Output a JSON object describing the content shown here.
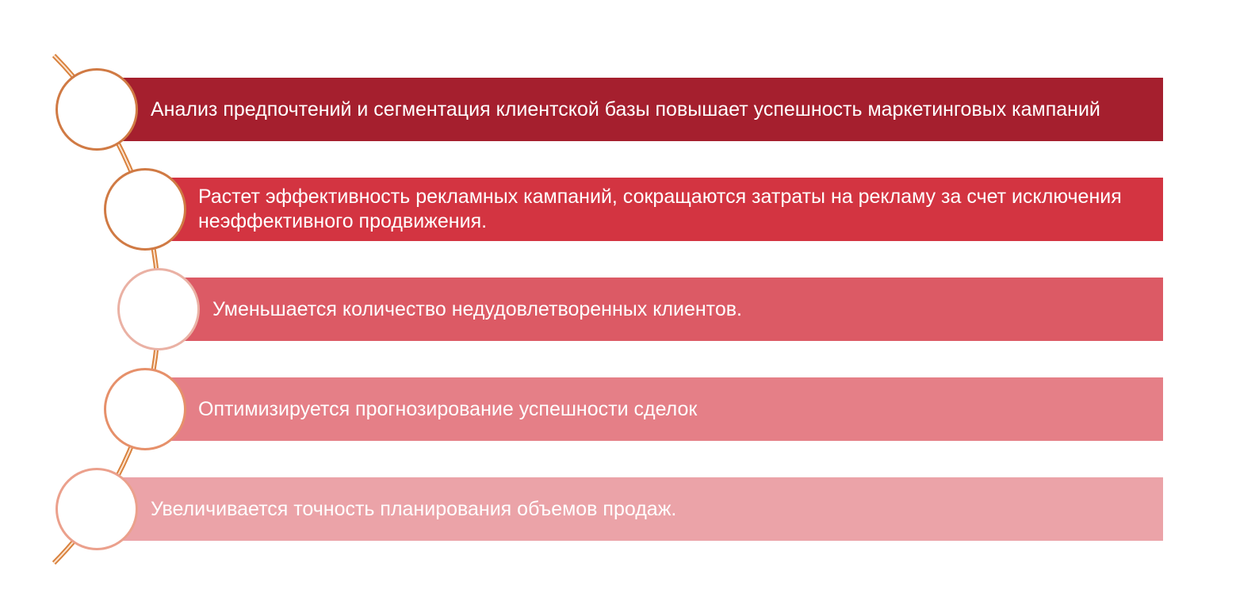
{
  "items": [
    {
      "text": "Анализ предпочтений и сегментация клиентской базы повышает успешность маркетинговых кампаний",
      "color": "#a51f2e",
      "circle_border": "#d07a44"
    },
    {
      "text": "Растет эффективность рекламных кампаний, сокращаются затраты на рекламу за счет исключения неэффективного продвижения.",
      "color": "#d33441",
      "circle_border": "#d07a44"
    },
    {
      "text": "Уменьшается количество недудовлетворенных клиентов.",
      "color": "#dc5a65",
      "circle_border": "#eab1a4"
    },
    {
      "text": "Оптимизируется прогнозирование успешности сделок",
      "color": "#e57f87",
      "circle_border": "#e6906a"
    },
    {
      "text": "Увеличивается точность планирования объемов продаж.",
      "color": "#eba3a8",
      "circle_border": "#eba08c"
    }
  ],
  "connector_color": "#d9823e"
}
